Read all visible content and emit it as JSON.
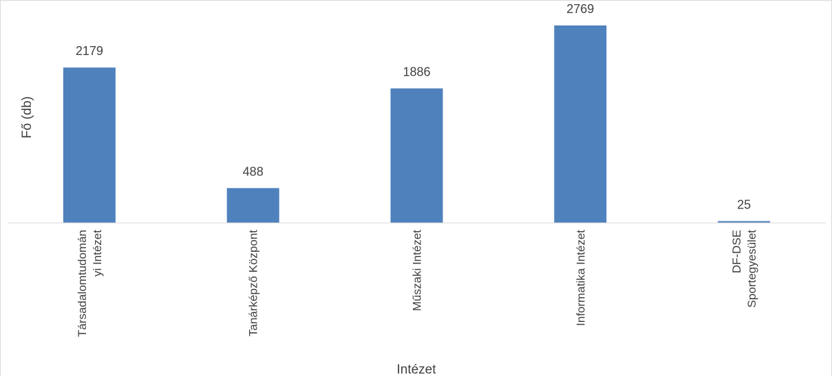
{
  "chart_data": {
    "type": "bar",
    "categories": [
      [
        "Társadalomtudomán",
        "yi Intézet"
      ],
      [
        "Tanárképző Központ"
      ],
      [
        "Műszaki Intézet"
      ],
      [
        "Informatika Intézet"
      ],
      [
        "DF-DSE",
        "Sportegyesület"
      ]
    ],
    "values": [
      2179,
      488,
      1886,
      2769,
      25
    ],
    "data_labels": [
      "2179",
      "488",
      "1886",
      "2769",
      "25"
    ],
    "xlabel": "Intézet",
    "ylabel": "Fő (db)",
    "ylim": [
      0,
      2769
    ],
    "grid": false,
    "bar_color": "#4f81bd",
    "axis_color": "#d9d9d9",
    "text_color": "#404040"
  }
}
